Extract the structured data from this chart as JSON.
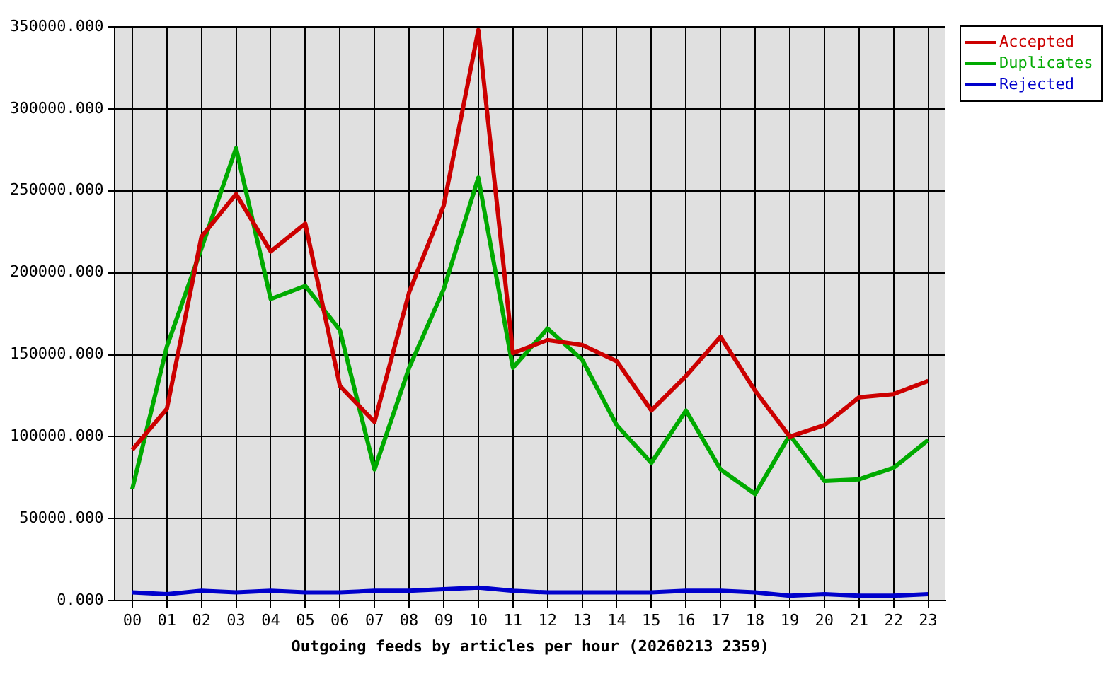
{
  "chart_data": {
    "type": "line",
    "xlabel": "Outgoing feeds by articles per hour (20260213 2359)",
    "categories": [
      "00",
      "01",
      "02",
      "03",
      "04",
      "05",
      "06",
      "07",
      "08",
      "09",
      "10",
      "11",
      "12",
      "13",
      "14",
      "15",
      "16",
      "17",
      "18",
      "19",
      "20",
      "21",
      "22",
      "23"
    ],
    "series": [
      {
        "name": "Accepted",
        "color": "#cc0000",
        "values": [
          92000,
          117000,
          222000,
          248000,
          213000,
          230000,
          131000,
          109000,
          188000,
          241000,
          348000,
          151000,
          159000,
          156000,
          146000,
          116000,
          137000,
          161000,
          128000,
          100000,
          107000,
          124000,
          126000,
          134000
        ]
      },
      {
        "name": "Duplicates",
        "color": "#00aa00",
        "values": [
          68000,
          155000,
          215000,
          276000,
          184000,
          192000,
          165000,
          80000,
          142000,
          190000,
          258000,
          142000,
          166000,
          147000,
          107000,
          84000,
          116000,
          80000,
          65000,
          101000,
          73000,
          74000,
          81000,
          98000
        ]
      },
      {
        "name": "Rejected",
        "color": "#0000cc",
        "values": [
          5000,
          4000,
          6000,
          5000,
          6000,
          5000,
          5000,
          6000,
          6000,
          7000,
          8000,
          6000,
          5000,
          5000,
          5000,
          5000,
          6000,
          6000,
          5000,
          3000,
          4000,
          3000,
          3000,
          4000
        ]
      }
    ],
    "ylim": [
      0,
      350000
    ],
    "yticks": [
      {
        "value": 0,
        "label": "0.000"
      },
      {
        "value": 50000,
        "label": "50000.000"
      },
      {
        "value": 100000,
        "label": "100000.000"
      },
      {
        "value": 150000,
        "label": "150000.000"
      },
      {
        "value": 200000,
        "label": "200000.000"
      },
      {
        "value": 250000,
        "label": "250000.000"
      },
      {
        "value": 300000,
        "label": "300000.000"
      },
      {
        "value": 350000,
        "label": "350000.000"
      }
    ],
    "grid": true,
    "legend": "top right",
    "line_style": "solid"
  }
}
